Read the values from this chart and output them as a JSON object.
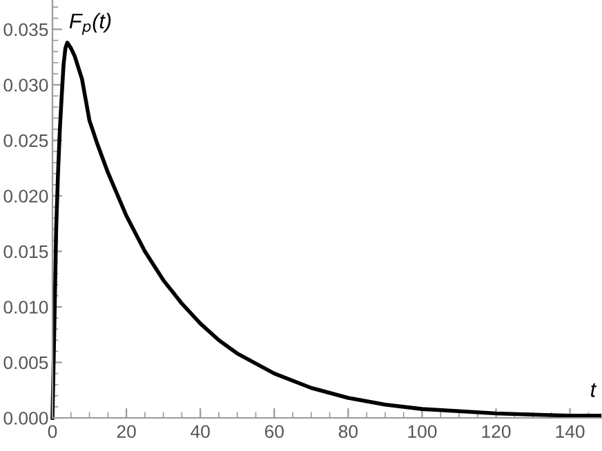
{
  "chart_data": {
    "type": "line",
    "xlabel": "t",
    "ylabel": "F$_{p}$(t)",
    "x": [
      0,
      0.5,
      1,
      1.5,
      2,
      2.5,
      3,
      3.5,
      4,
      5,
      6,
      8,
      10,
      12,
      15,
      20,
      25,
      30,
      35,
      40,
      45,
      50,
      60,
      70,
      80,
      90,
      100,
      110,
      120,
      130,
      140,
      148
    ],
    "series": [
      {
        "color": "#000000",
        "values": [
          0,
          0.008,
          0.017,
          0.022,
          0.026,
          0.029,
          0.0318,
          0.0333,
          0.0338,
          0.0333,
          0.0326,
          0.0305,
          0.0268,
          0.0248,
          0.0221,
          0.0182,
          0.015,
          0.0124,
          0.0103,
          0.0085,
          0.007,
          0.0058,
          0.004,
          0.0027,
          0.0018,
          0.0012,
          0.0008,
          0.0006,
          0.0004,
          0.0003,
          0.0002,
          0.0002
        ]
      }
    ],
    "xlim": [
      0,
      148.5
    ],
    "ylim": [
      0,
      0.0376
    ],
    "xticks": [
      0,
      20,
      40,
      60,
      80,
      100,
      120,
      140
    ],
    "yticks": [
      {
        "value": 0,
        "label": "0.000"
      },
      {
        "value": 0.005,
        "label": "0.005"
      },
      {
        "value": 0.01,
        "label": "0.010"
      },
      {
        "value": 0.015,
        "label": "0.015"
      },
      {
        "value": 0.02,
        "label": "0.020"
      },
      {
        "value": 0.025,
        "label": "0.025"
      },
      {
        "value": 0.03,
        "label": "0.030"
      },
      {
        "value": 0.035,
        "label": "0.035"
      }
    ],
    "grid": false,
    "legend": false,
    "marker": "none",
    "line_style": "solid"
  }
}
